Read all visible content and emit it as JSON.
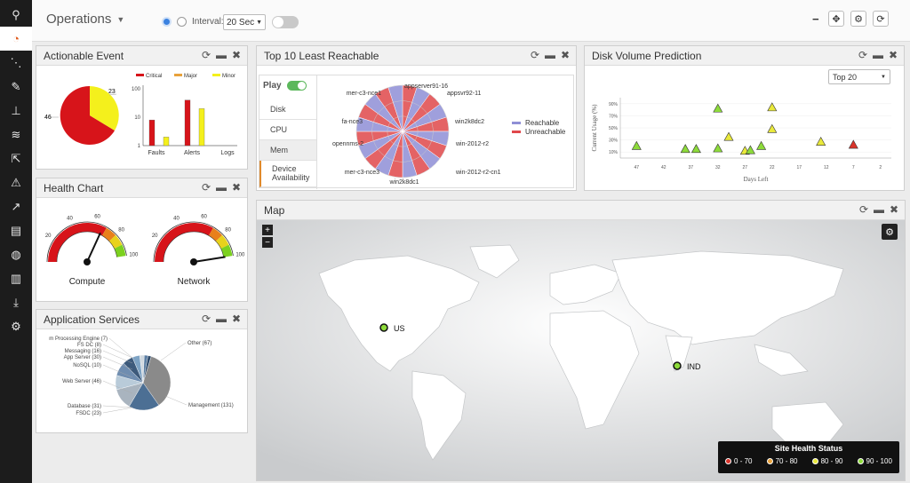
{
  "sidebar": {
    "items": [
      {
        "name": "sitemap-icon",
        "glyph": "⚲"
      },
      {
        "name": "dashboard-icon",
        "glyph": "◔"
      },
      {
        "name": "network-icon",
        "glyph": "⋱"
      },
      {
        "name": "edit-icon",
        "glyph": "✎"
      },
      {
        "name": "hierarchy-icon",
        "glyph": "⊥"
      },
      {
        "name": "layers-icon",
        "glyph": "≋"
      },
      {
        "name": "export-icon",
        "glyph": "⇱"
      },
      {
        "name": "alert-icon",
        "glyph": "⚠"
      },
      {
        "name": "analytics-icon",
        "glyph": "↗"
      },
      {
        "name": "reports-icon",
        "glyph": "▤"
      },
      {
        "name": "globe-icon",
        "glyph": "◍"
      },
      {
        "name": "document-icon",
        "glyph": "▥"
      },
      {
        "name": "deploy-icon",
        "glyph": "⤓"
      },
      {
        "name": "settings-icon",
        "glyph": "⚙"
      }
    ]
  },
  "header": {
    "title": "Operations",
    "interval_label": "Interval:",
    "interval_value": "20 Sec"
  },
  "actionable_event": {
    "title": "Actionable Event",
    "pie": {
      "label_left": "46",
      "label_right": "23"
    },
    "legend": [
      "Critical",
      "Major",
      "Minor"
    ],
    "y_ticks": [
      "100",
      "10",
      "1"
    ],
    "categories": [
      "Faults",
      "Alerts",
      "Logs"
    ]
  },
  "health_chart": {
    "title": "Health Chart",
    "gauges": [
      {
        "label": "Compute",
        "ticks": [
          "20",
          "40",
          "60",
          "80",
          "100"
        ]
      },
      {
        "label": "Network",
        "ticks": [
          "20",
          "40",
          "60",
          "80",
          "100"
        ]
      }
    ]
  },
  "app_services": {
    "title": "Application Services",
    "labels": [
      "m Processing Engine (7)",
      "FS DC (8)",
      "Messaging (16)",
      "App Server (30)",
      "NoSQL (10)",
      "Web Server (46)",
      "Database (31)",
      "FSDC (23)",
      "Other (67)",
      "Management (131)"
    ]
  },
  "least_reachable": {
    "title": "Top 10 Least Reachable",
    "play_label": "Play",
    "tabs": [
      "Disk",
      "CPU",
      "Mem",
      "Device Availability"
    ],
    "hosts": [
      "appserver91-16",
      "appsvr92-11",
      "win2k8dc2",
      "win-2012-r2",
      "win-2012-r2-cn1",
      "win2k8dc1",
      "mer-c3-nce3",
      "opennms-2",
      "fa-nce3",
      "mer-c3-nce1"
    ],
    "legend": [
      "Reachable",
      "Unreachable"
    ],
    "colors": {
      "reachable": "#8f8fd6",
      "unreachable": "#e0484b"
    }
  },
  "disk_prediction": {
    "title": "Disk Volume Prediction",
    "select_value": "Top 20",
    "ylabel": "Current Usage (%)",
    "xlabel": "Days Left",
    "y_ticks": [
      "90%",
      "70%",
      "50%",
      "30%",
      "10%"
    ],
    "x_ticks": [
      "47",
      "42",
      "37",
      "32",
      "27",
      "22",
      "17",
      "12",
      "7",
      "2"
    ]
  },
  "map": {
    "title": "Map",
    "markers": [
      "US",
      "IND"
    ],
    "legend_title": "Site Health Status",
    "legend": [
      {
        "label": "0 - 70",
        "color": "#d9342b"
      },
      {
        "label": "70 - 80",
        "color": "#e9a23b"
      },
      {
        "label": "80 - 90",
        "color": "#e9e93b"
      },
      {
        "label": "90 - 100",
        "color": "#8ddb3a"
      }
    ]
  },
  "chart_data": [
    {
      "type": "bar",
      "categories": [
        "Faults",
        "Alerts",
        "Logs"
      ],
      "series": [
        {
          "name": "Critical",
          "values": [
            8,
            40,
            0
          ]
        },
        {
          "name": "Major",
          "values": [
            0,
            0,
            0
          ]
        },
        {
          "name": "Minor",
          "values": [
            2,
            20,
            0
          ]
        }
      ],
      "ylim": [
        1,
        100
      ]
    },
    {
      "type": "pie",
      "labels": [
        "46",
        "23"
      ],
      "values": [
        46,
        23
      ]
    },
    {
      "type": "pie",
      "labels": [
        "Management",
        "Other",
        "Web Server",
        "Database",
        "App Server",
        "FSDC",
        "Messaging",
        "NoSQL",
        "FS DC",
        "m Processing Engine"
      ],
      "values": [
        131,
        67,
        46,
        31,
        30,
        23,
        16,
        10,
        8,
        7
      ]
    },
    {
      "type": "scatter",
      "xlabel": "Days Left",
      "ylabel": "Current Usage (%)",
      "x_axis": "reversed",
      "xlim": [
        50,
        0
      ],
      "ylim": [
        0,
        100
      ],
      "points": [
        {
          "x": 47,
          "y": 20,
          "color": "#8ddb3a"
        },
        {
          "x": 38,
          "y": 15,
          "color": "#8ddb3a"
        },
        {
          "x": 36,
          "y": 15,
          "color": "#8ddb3a"
        },
        {
          "x": 32,
          "y": 82,
          "color": "#8ddb3a"
        },
        {
          "x": 32,
          "y": 16,
          "color": "#8ddb3a"
        },
        {
          "x": 30,
          "y": 35,
          "color": "#e9e93b"
        },
        {
          "x": 27,
          "y": 12,
          "color": "#e9e93b"
        },
        {
          "x": 26,
          "y": 13,
          "color": "#8ddb3a"
        },
        {
          "x": 24,
          "y": 20,
          "color": "#8ddb3a"
        },
        {
          "x": 22,
          "y": 48,
          "color": "#e9e93b"
        },
        {
          "x": 22,
          "y": 84,
          "color": "#e9e93b"
        },
        {
          "x": 13,
          "y": 27,
          "color": "#e9e93b"
        },
        {
          "x": 7,
          "y": 22,
          "color": "#d9342b"
        }
      ]
    },
    {
      "type": "gauge",
      "labels": [
        "Compute",
        "Network"
      ],
      "values": [
        67,
        100
      ],
      "range": [
        0,
        100
      ]
    }
  ]
}
